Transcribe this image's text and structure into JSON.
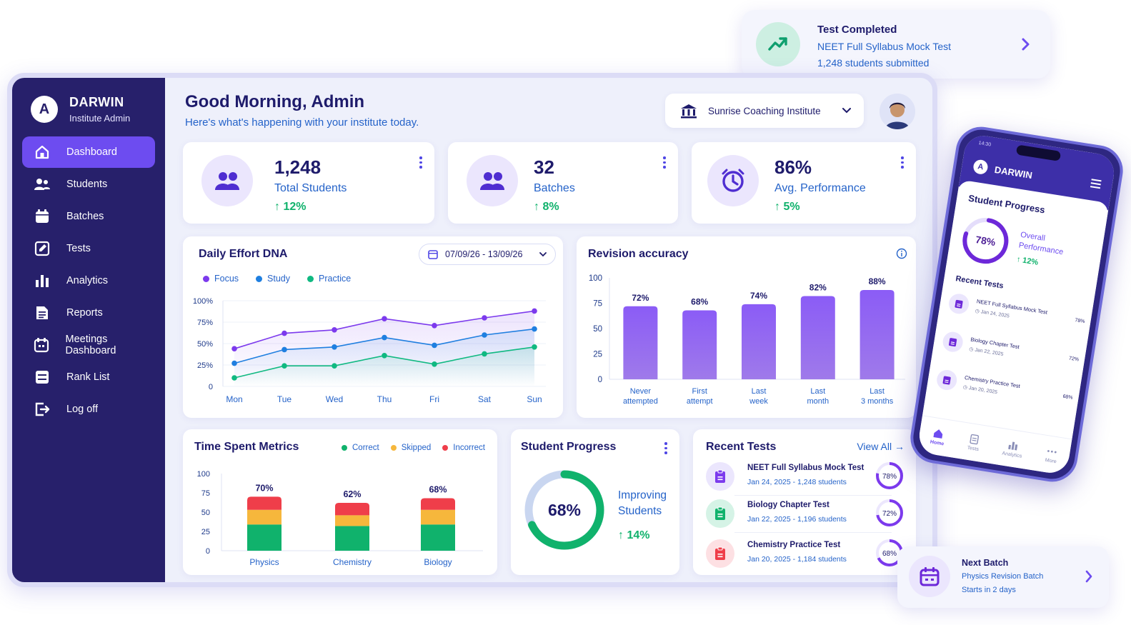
{
  "brand": {
    "logo_letter": "A",
    "name": "DARWIN",
    "role": "Institute Admin"
  },
  "sidebar": {
    "items": [
      {
        "label": "Dashboard",
        "icon": "home-icon",
        "active": true
      },
      {
        "label": "Students",
        "icon": "users-icon"
      },
      {
        "label": "Batches",
        "icon": "calendar-icon"
      },
      {
        "label": "Tests",
        "icon": "edit-icon"
      },
      {
        "label": "Analytics",
        "icon": "bar-chart-icon"
      },
      {
        "label": "Reports",
        "icon": "document-icon"
      },
      {
        "label": "Meetings Dashboard",
        "icon": "calendar-check-icon"
      },
      {
        "label": "Rank List",
        "icon": "list-icon"
      },
      {
        "label": "Log off",
        "icon": "logout-icon"
      }
    ]
  },
  "header": {
    "greeting": "Good Morning, Admin",
    "subtitle": "Here's what's happening with your institute today.",
    "institute": "Sunrise Coaching Institute"
  },
  "stats": [
    {
      "value": "1,248",
      "label": "Total Students",
      "delta": "12%",
      "icon": "users-icon"
    },
    {
      "value": "32",
      "label": "Batches",
      "delta": "8%",
      "icon": "group-icon"
    },
    {
      "value": "86%",
      "label": "Avg. Performance",
      "delta": "5%",
      "icon": "clock-icon"
    }
  ],
  "effort": {
    "title": "Daily Effort DNA",
    "date_range": "07/09/26 - 13/09/26",
    "chart_data": {
      "type": "line",
      "x": [
        "Mon",
        "Tue",
        "Wed",
        "Thu",
        "Fri",
        "Sat",
        "Sun"
      ],
      "y_ticks": [
        "100%",
        "75%",
        "50%",
        "25%",
        "0"
      ],
      "ylim": [
        0,
        100
      ],
      "series": [
        {
          "name": "Focus",
          "color": "#7c3aed",
          "values": [
            44,
            62,
            66,
            79,
            71,
            80,
            88
          ]
        },
        {
          "name": "Study",
          "color": "#1f7fe0",
          "values": [
            27,
            43,
            46,
            57,
            48,
            60,
            67
          ]
        },
        {
          "name": "Practice",
          "color": "#10b981",
          "values": [
            10,
            24,
            24,
            36,
            26,
            38,
            46
          ]
        }
      ]
    }
  },
  "revision": {
    "title": "Revision accuracy",
    "chart_data": {
      "type": "bar",
      "categories": [
        [
          "Never",
          "attempted"
        ],
        [
          "First",
          "attempt"
        ],
        [
          "Last",
          "week"
        ],
        [
          "Last",
          "month"
        ],
        [
          "Last",
          "3 months"
        ]
      ],
      "values": [
        72,
        68,
        74,
        82,
        88
      ],
      "value_labels": [
        "72%",
        "68%",
        "74%",
        "82%",
        "88%"
      ],
      "y_ticks": [
        "100",
        "75",
        "50",
        "25",
        "0"
      ],
      "ylim": [
        0,
        100
      ],
      "color": "#8b5cf6"
    }
  },
  "time_spent": {
    "title": "Time Spent Metrics",
    "legend": [
      {
        "label": "Correct",
        "color": "#10b26c"
      },
      {
        "label": "Skipped",
        "color": "#f6b73c"
      },
      {
        "label": "Incorrect",
        "color": "#ef3e4a"
      }
    ],
    "chart_data": {
      "type": "bar",
      "stacked": true,
      "categories": [
        "Physics",
        "Chemistry",
        "Biology"
      ],
      "totals": [
        70,
        62,
        68
      ],
      "total_labels": [
        "70%",
        "62%",
        "68%"
      ],
      "y_ticks": [
        "100",
        "75",
        "50",
        "25",
        "0"
      ],
      "ylim": [
        0,
        100
      ],
      "series": [
        {
          "name": "Correct",
          "color": "#10b26c",
          "values": [
            34,
            32,
            34
          ]
        },
        {
          "name": "Skipped",
          "color": "#f6b73c",
          "values": [
            19,
            14,
            19
          ]
        },
        {
          "name": "Incorrect",
          "color": "#ef3e4a",
          "values": [
            17,
            16,
            15
          ]
        }
      ]
    }
  },
  "student_progress": {
    "title": "Student Progress",
    "percent": 68,
    "percent_label": "68%",
    "caption_line1": "Improving",
    "caption_line2": "Students",
    "delta": "14%"
  },
  "recent_tests": {
    "title": "Recent Tests",
    "view_all": "View All",
    "items": [
      {
        "name": "NEET Full Syllabus Mock Test",
        "meta": "Jan 24, 2025 - 1,248 students",
        "percent": 78,
        "percent_label": "78%",
        "color": "#7c3aed",
        "bg": "#ebe6fd"
      },
      {
        "name": "Biology Chapter Test",
        "meta": "Jan 22, 2025 - 1,196 students",
        "percent": 72,
        "percent_label": "72%",
        "color": "#10b26c",
        "bg": "#d5f3e6"
      },
      {
        "name": "Chemistry Practice Test",
        "meta": "Jan 20, 2025 - 1,184 students",
        "percent": 68,
        "percent_label": "68%",
        "color": "#ef3e4a",
        "bg": "#fde0e3"
      }
    ]
  },
  "toast_top": {
    "title": "Test Completed",
    "line1": "NEET Full Syllabus Mock Test",
    "line2": "1,248 students submitted"
  },
  "toast_bottom": {
    "title": "Next Batch",
    "line1": "Physics Revision Batch",
    "line2": "Starts in 2 days"
  },
  "phone": {
    "status_time": "14:30",
    "brand": "DARWIN",
    "logo_letter": "A",
    "title": "Student Progress",
    "overall_percent": 78,
    "overall_label": "78%",
    "overall_caption1": "Overall",
    "overall_caption2": "Performance",
    "overall_delta": "12%",
    "recent_title": "Recent Tests",
    "tests": [
      {
        "name": "NEET Full Syllabus Mock Test",
        "date": "Jan 24, 2025",
        "pct": "78%"
      },
      {
        "name": "Biology Chapter Test",
        "date": "Jan 22, 2025",
        "pct": "72%"
      },
      {
        "name": "Chemistry Practice Test",
        "date": "Jan 20, 2025",
        "pct": "68%"
      }
    ],
    "nav": [
      {
        "label": "Home",
        "active": true
      },
      {
        "label": "Tests"
      },
      {
        "label": "Analytics"
      },
      {
        "label": "More"
      }
    ]
  }
}
